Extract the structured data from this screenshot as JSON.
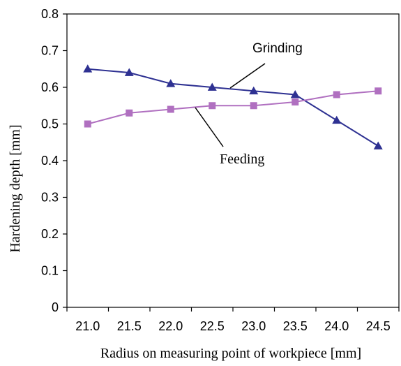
{
  "chart_data": {
    "type": "line",
    "title": "",
    "xlabel": "Radius on measuring point of workpiece [mm]",
    "ylabel": "Hardening depth [mm]",
    "categories": [
      "21.0",
      "21.5",
      "22.0",
      "22.5",
      "23.0",
      "23.5",
      "24.0",
      "24.5"
    ],
    "ylim": [
      0,
      0.8
    ],
    "yticks": [
      "0",
      "0.1",
      "0.2",
      "0.3",
      "0.4",
      "0.5",
      "0.6",
      "0.7",
      "0.8"
    ],
    "grid": false,
    "legend": "none",
    "series": [
      {
        "name": "Grinding",
        "marker": "triangle",
        "color": "#2e3192",
        "values": [
          0.65,
          0.64,
          0.61,
          0.6,
          0.59,
          0.58,
          0.51,
          0.44
        ]
      },
      {
        "name": "Feeding",
        "marker": "square",
        "color": "#b070c0",
        "values": [
          0.5,
          0.53,
          0.54,
          0.55,
          0.55,
          0.56,
          0.58,
          0.59
        ]
      }
    ],
    "annotations": [
      "Grinding",
      "Feeding"
    ]
  }
}
